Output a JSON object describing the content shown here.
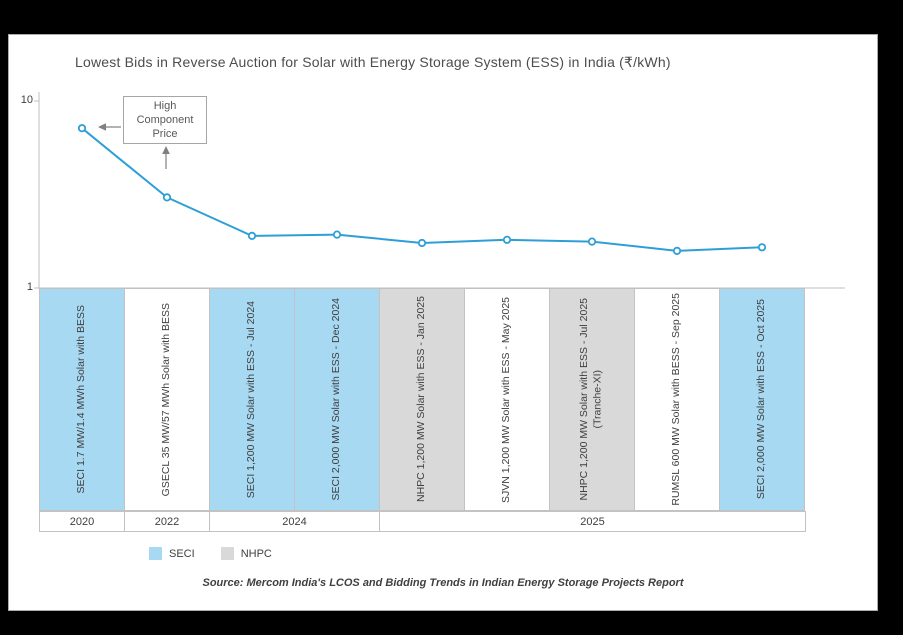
{
  "title": "Lowest Bids in Reverse Auction for Solar with Energy Storage System (ESS) in India (₹/kWh)",
  "annotation": {
    "label": "High Component Price"
  },
  "y_axis": {
    "ticks": [
      "10",
      "1"
    ]
  },
  "legend": [
    {
      "label": "SECI",
      "color": "#A7D9F2"
    },
    {
      "label": "NHPC",
      "color": "#D9D9D9"
    }
  ],
  "source": "Source: Mercom India's LCOS and Bidding Trends in Indian Energy Storage Projects Report",
  "chart_data": {
    "type": "line",
    "title": "Lowest Bids in Reverse Auction for Solar with Energy Storage System (ESS) in India (₹/kWh)",
    "ylabel": "₹/kWh",
    "xlabel": "",
    "y_scale": "log",
    "ylim": [
      1,
      10
    ],
    "grid": "off",
    "legend_position": "bottom",
    "categories": [
      "SECI 1.7 MW/1.4 MWh Solar with BESS",
      "GSECL 35 MW/57 MWh Solar with BESS",
      "SECI 1,200 MW Solar with ESS - Jul 2024",
      "SECI 2,000 MW Solar with ESS - Dec 2024",
      "NHPC 1,200 MW Solar with ESS - Jan 2025",
      "SJVN 1,200 MW Solar with ESS - May 2025",
      "NHPC 1,200 MW Solar with ESS - Jul 2025",
      "RUMSL 600 MW Solar with BESS - Sep 2025",
      "SECI 2,000 MW Solar with ESS - Oct 2025"
    ],
    "category_subs": {
      "6": "(Tranche-XI)"
    },
    "values": [
      7.15,
      3.05,
      1.9,
      1.93,
      1.74,
      1.81,
      1.77,
      1.58,
      1.65
    ],
    "band_fills": [
      "seci",
      "none",
      "seci",
      "seci",
      "nhpc",
      "none",
      "nhpc",
      "none",
      "seci"
    ],
    "year_groups": [
      {
        "label": "2020",
        "span": 1
      },
      {
        "label": "2022",
        "span": 1
      },
      {
        "label": "2024",
        "span": 2
      },
      {
        "label": "2025",
        "span": 5
      }
    ],
    "colors": {
      "line": "#2E9FD6",
      "seci": "#A7D9F2",
      "nhpc": "#D9D9D9"
    },
    "annotation": "High Component Price"
  }
}
